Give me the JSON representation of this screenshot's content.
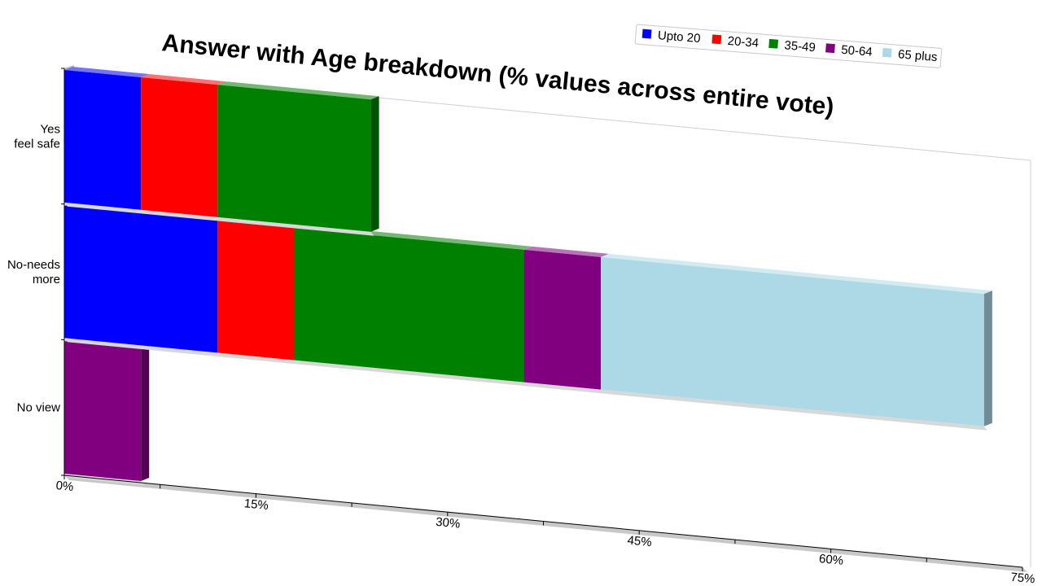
{
  "chart_data": {
    "type": "bar",
    "orientation": "horizontal",
    "stacked": true,
    "title": "Answer with Age breakdown (% values across entire vote)",
    "categories": [
      [
        "Yes",
        "feel safe"
      ],
      [
        "No-needs",
        "more"
      ],
      [
        "No view"
      ]
    ],
    "series": [
      {
        "name": "Upto 20",
        "color": "#0000ff",
        "values": [
          6,
          12,
          0
        ]
      },
      {
        "name": "20-34",
        "color": "#ff0000",
        "values": [
          6,
          6,
          0
        ]
      },
      {
        "name": "35-49",
        "color": "#008000",
        "values": [
          12,
          18,
          0
        ]
      },
      {
        "name": "50-64",
        "color": "#800080",
        "values": [
          0,
          6,
          6
        ]
      },
      {
        "name": "65 plus",
        "color": "#add8e6",
        "values": [
          0,
          30,
          0
        ]
      }
    ],
    "xlim": [
      0,
      75
    ],
    "xticks": [
      "0%",
      "15%",
      "30%",
      "45%",
      "60%",
      "75%"
    ],
    "legend_position": "top-right",
    "grid": false
  }
}
